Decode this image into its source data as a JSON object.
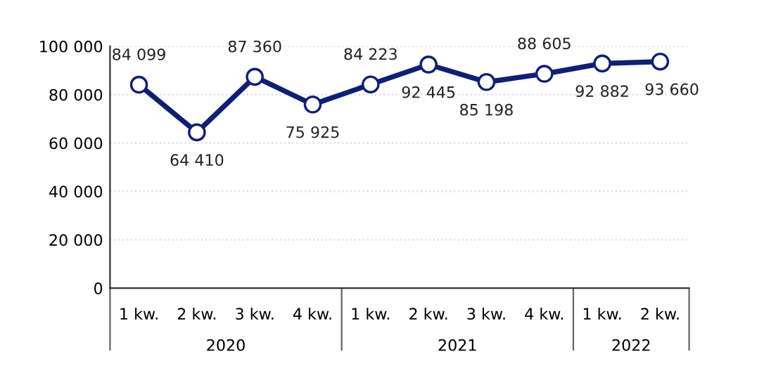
{
  "chart_data": {
    "type": "line",
    "categories": [
      "1 kw.",
      "2 kw.",
      "3 kw.",
      "4 kw.",
      "1 kw.",
      "2 kw.",
      "3 kw.",
      "4 kw.",
      "1 kw.",
      "2 kw."
    ],
    "series": [
      {
        "color": "#0f1f78",
        "values": [
          84099,
          64410,
          87360,
          75925,
          84223,
          92445,
          85198,
          88605,
          92882,
          93660
        ],
        "value_labels": [
          "84 099",
          "64 410",
          "87 360",
          "75 925",
          "84 223",
          "92 445",
          "85 198",
          "88 605",
          "92 882",
          "93 660"
        ]
      }
    ],
    "ylim": [
      0,
      100000
    ],
    "yticks": [
      {
        "value": 0,
        "label": "0"
      },
      {
        "value": 20000,
        "label": "20 000"
      },
      {
        "value": 40000,
        "label": "40 000"
      },
      {
        "value": 60000,
        "label": "60 000"
      },
      {
        "value": 80000,
        "label": "80 000"
      },
      {
        "value": 100000,
        "label": "100 000"
      }
    ],
    "annotations": [
      "2020",
      "2021",
      "2022"
    ],
    "grid": "y",
    "marker": "circle",
    "line_style": "solid",
    "legend": false
  }
}
